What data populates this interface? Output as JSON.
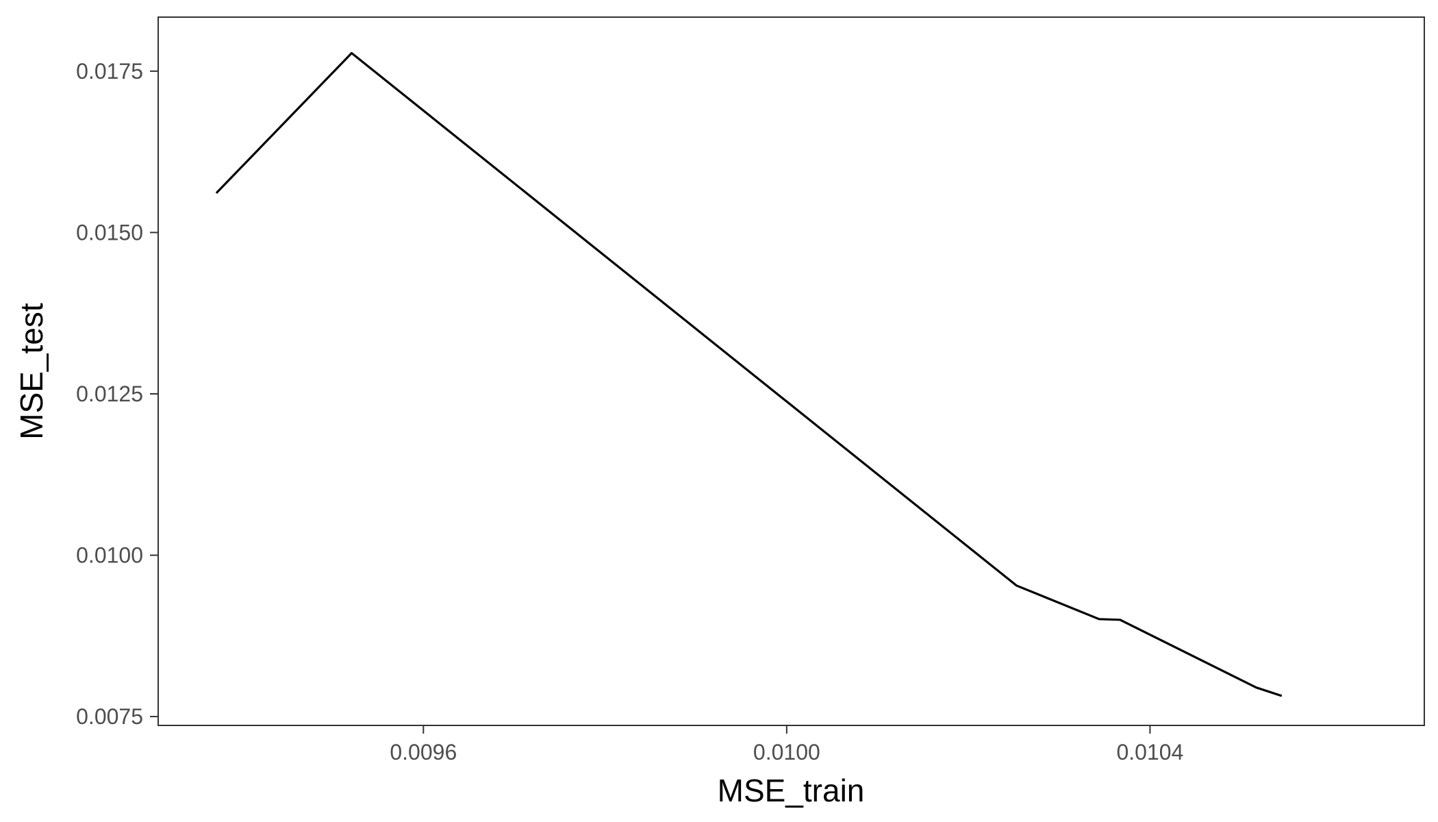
{
  "chart_data": {
    "type": "line",
    "title": "",
    "xlabel": "MSE_train",
    "ylabel": "MSE_test",
    "xlim": [
      0.009308,
      0.010702
    ],
    "ylim": [
      0.007363,
      0.018337
    ],
    "x_ticks": [
      {
        "value": 0.0096,
        "label": "0.0096"
      },
      {
        "value": 0.01,
        "label": "0.0100"
      },
      {
        "value": 0.0104,
        "label": "0.0104"
      }
    ],
    "y_ticks": [
      {
        "value": 0.0075,
        "label": "0.0075"
      },
      {
        "value": 0.01,
        "label": "0.0100"
      },
      {
        "value": 0.0125,
        "label": "0.0125"
      },
      {
        "value": 0.015,
        "label": "0.0150"
      },
      {
        "value": 0.0175,
        "label": "0.0175"
      }
    ],
    "grid": false,
    "legend": "none",
    "series": [
      {
        "x": [
          0.009372,
          0.009521,
          0.010253,
          0.010344,
          0.010367,
          0.010517,
          0.010545
        ],
        "y": [
          0.01561,
          0.01778,
          0.00953,
          0.00901,
          0.009,
          0.00795,
          0.00782
        ],
        "color": "#000000"
      }
    ]
  }
}
